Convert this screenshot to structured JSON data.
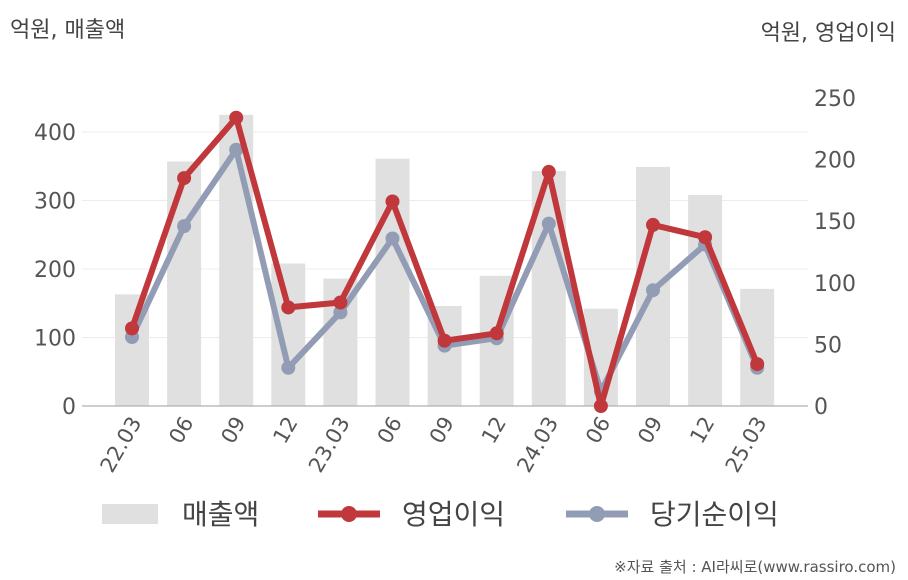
{
  "chart_data": {
    "type": "bar+line",
    "left_axis_unit": "억원, 매출액",
    "right_axis_unit": "억원, 영업이익",
    "categories": [
      "22.03",
      "06",
      "09",
      "12",
      "23.03",
      "06",
      "09",
      "12",
      "24.03",
      "06",
      "09",
      "12",
      "25.03"
    ],
    "left_ylim": [
      0,
      400
    ],
    "left_ticks": [
      0,
      100,
      200,
      300,
      400
    ],
    "right_ylim": [
      0,
      250
    ],
    "right_ticks": [
      0,
      50,
      100,
      150,
      200,
      250
    ],
    "grid": true,
    "legend_position": "bottom",
    "series": [
      {
        "name": "매출액",
        "type": "bar",
        "axis": "left",
        "color": "#e0e0e0",
        "values": [
          163,
          357,
          425,
          208,
          186,
          361,
          146,
          190,
          343,
          142,
          349,
          308,
          171
        ]
      },
      {
        "name": "영업이익",
        "type": "line",
        "axis": "right",
        "color": "#c0383b",
        "values": [
          63,
          185,
          234,
          80,
          84,
          166,
          53,
          59,
          190,
          0,
          147,
          137,
          34
        ]
      },
      {
        "name": "당기순이익",
        "type": "line",
        "axis": "right",
        "color": "#929db5",
        "values": [
          56,
          146,
          208,
          31,
          76,
          136,
          49,
          55,
          148,
          12,
          94,
          131,
          31
        ]
      }
    ],
    "source": "※자료 출처 : AI라씨로(www.rassiro.com)"
  }
}
